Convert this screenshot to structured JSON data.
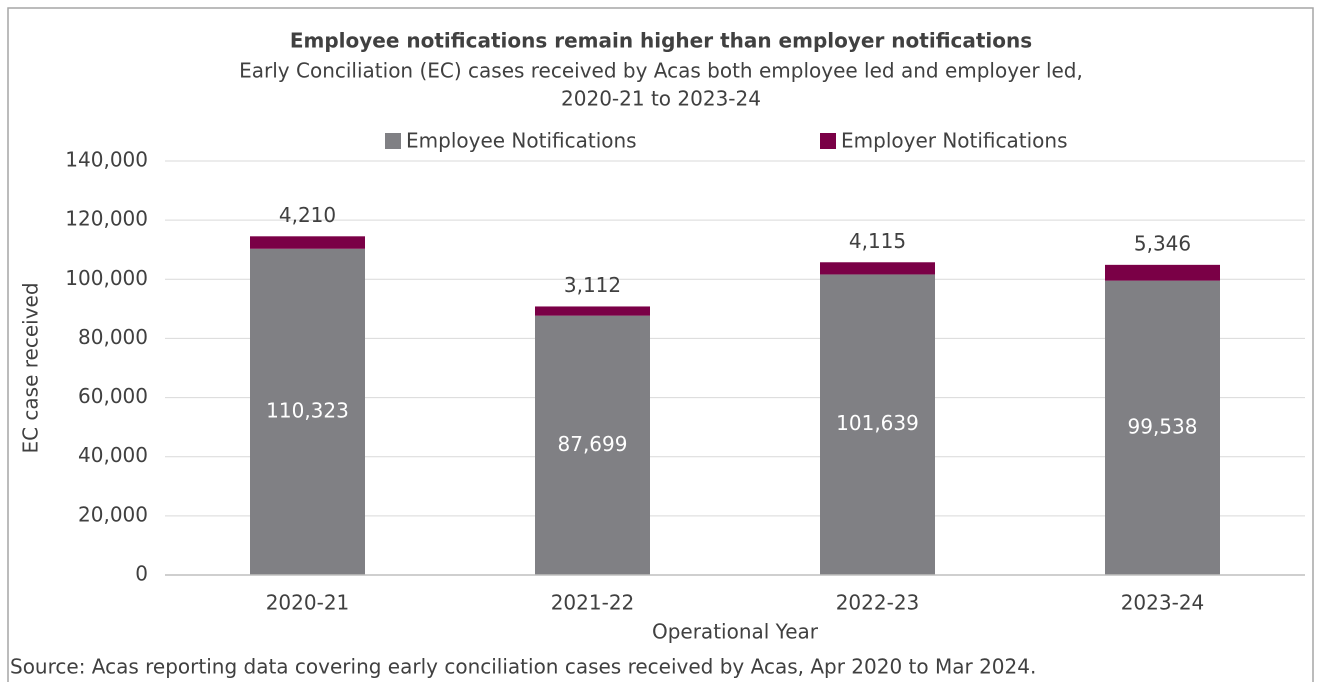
{
  "chart_data": {
    "type": "stacked_bar",
    "title": "Employee notifications remain higher than employer notifications",
    "subtitle": [
      "Early Conciliation (EC) cases received by Acas both employee led and employer led,",
      "2020-21 to 2023-24"
    ],
    "x_label": "Operational Year",
    "y_label": "EC case received",
    "source": "Source: Acas reporting data covering early conciliation cases received by Acas, Apr 2020 to Mar 2024.",
    "categories": [
      "2020-21",
      "2021-22",
      "2022-23",
      "2023-24"
    ],
    "series": [
      {
        "name": "Employee Notifications",
        "color": "#808084",
        "values": [
          110323,
          87699,
          101639,
          99538
        ],
        "value_labels": [
          "110,323",
          "87,699",
          "101,639",
          "99,538"
        ]
      },
      {
        "name": "Employer Notifications",
        "color": "#7a0046",
        "values": [
          4210,
          3112,
          4115,
          5346
        ],
        "value_labels": [
          "4,210",
          "3,112",
          "4,115",
          "5,346"
        ]
      }
    ],
    "ylim": [
      0,
      140000
    ],
    "yticks": [
      0,
      {
        "value": 20000,
        "label": "20,000"
      },
      {
        "value": 40000,
        "label": "40,000"
      },
      {
        "value": 60000,
        "label": "60,000"
      },
      {
        "value": 80000,
        "label": "80,000"
      },
      {
        "value": 100000,
        "label": "100,000"
      },
      {
        "value": 120000,
        "label": "120,000"
      },
      {
        "value": 140000,
        "label": "140,000"
      }
    ],
    "grid": true,
    "legend": "top"
  }
}
